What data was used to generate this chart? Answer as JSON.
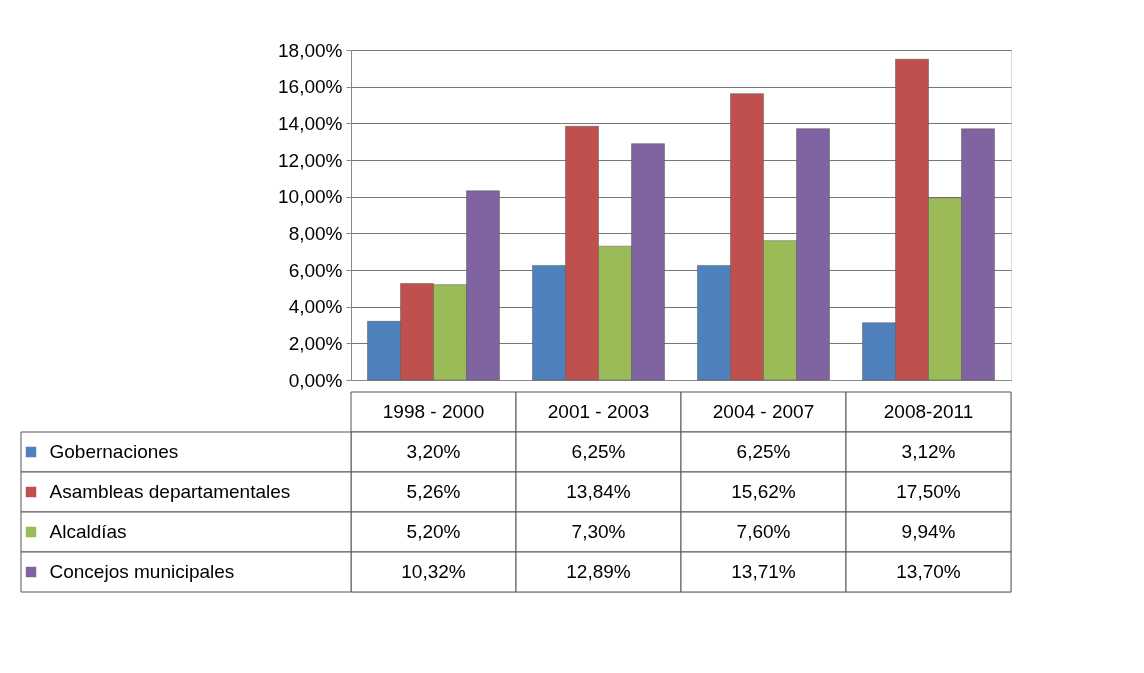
{
  "chart_data": {
    "type": "bar",
    "categories": [
      "1998 - 2000",
      "2001 - 2003",
      "2004 - 2007",
      "2008-2011"
    ],
    "ylim": [
      0,
      18
    ],
    "yticks": [
      {
        "value": 0,
        "label": "0,00%"
      },
      {
        "value": 2,
        "label": "2,00%"
      },
      {
        "value": 4,
        "label": "4,00%"
      },
      {
        "value": 6,
        "label": "6,00%"
      },
      {
        "value": 8,
        "label": "8,00%"
      },
      {
        "value": 10,
        "label": "10,00%"
      },
      {
        "value": 12,
        "label": "12,00%"
      },
      {
        "value": 14,
        "label": "14,00%"
      },
      {
        "value": 16,
        "label": "16,00%"
      },
      {
        "value": 18,
        "label": "18,00%"
      }
    ],
    "grid": "y",
    "legend": "bottom left",
    "series": [
      {
        "name": "Gobernaciones",
        "color": "#4f81bd",
        "values": [
          3.2,
          6.25,
          6.25,
          3.12
        ],
        "value_labels": [
          "3,20%",
          "6,25%",
          "6,25%",
          "3,12%"
        ]
      },
      {
        "name": "Asambleas departamentales",
        "color": "#c0504d",
        "values": [
          5.26,
          13.84,
          15.62,
          17.5
        ],
        "value_labels": [
          "5,26%",
          "13,84%",
          "15,62%",
          "17,50%"
        ]
      },
      {
        "name": "Alcaldías",
        "color": "#9bbb59",
        "values": [
          5.2,
          7.3,
          7.6,
          9.94
        ],
        "value_labels": [
          "5,20%",
          "7,30%",
          "7,60%",
          "9,94%"
        ]
      },
      {
        "name": "Concejos municipales",
        "color": "#8064a2",
        "values": [
          10.32,
          12.89,
          13.71,
          13.7
        ],
        "value_labels": [
          "10,32%",
          "12,89%",
          "13,71%",
          "13,70%"
        ]
      }
    ]
  }
}
